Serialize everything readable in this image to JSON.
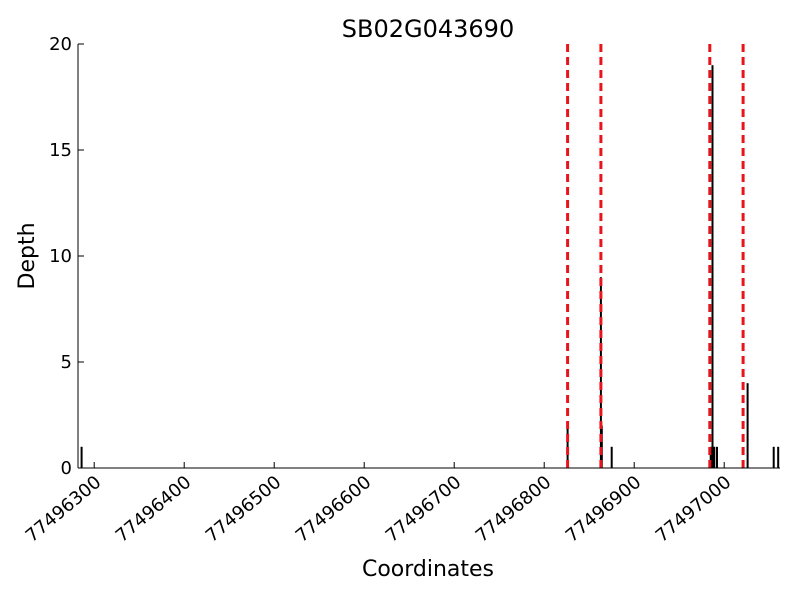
{
  "chart_data": {
    "type": "bar",
    "title": "SB02G043690",
    "xlabel": "Coordinates",
    "ylabel": "Depth",
    "xlim": [
      77496282,
      77497062
    ],
    "ylim": [
      0,
      20
    ],
    "x_ticks": [
      77496300,
      77496400,
      77496500,
      77496600,
      77496700,
      77496800,
      77496900,
      77497000
    ],
    "y_ticks": [
      0,
      5,
      10,
      15,
      20
    ],
    "grid": false,
    "series": [
      {
        "x": [
          77496286,
          77496826,
          77496863,
          77496864,
          77496875,
          77496985,
          77496987,
          77496988,
          77496989,
          77496992,
          77497026,
          77497055,
          77497060
        ],
        "values": [
          1,
          2,
          9,
          2,
          1,
          1,
          19,
          1,
          1,
          1,
          4,
          1,
          1
        ]
      }
    ],
    "vlines": [
      77496826,
      77496863,
      77496984,
      77497021
    ],
    "vline_color": "#e8141c",
    "bar_color": "#000000"
  }
}
